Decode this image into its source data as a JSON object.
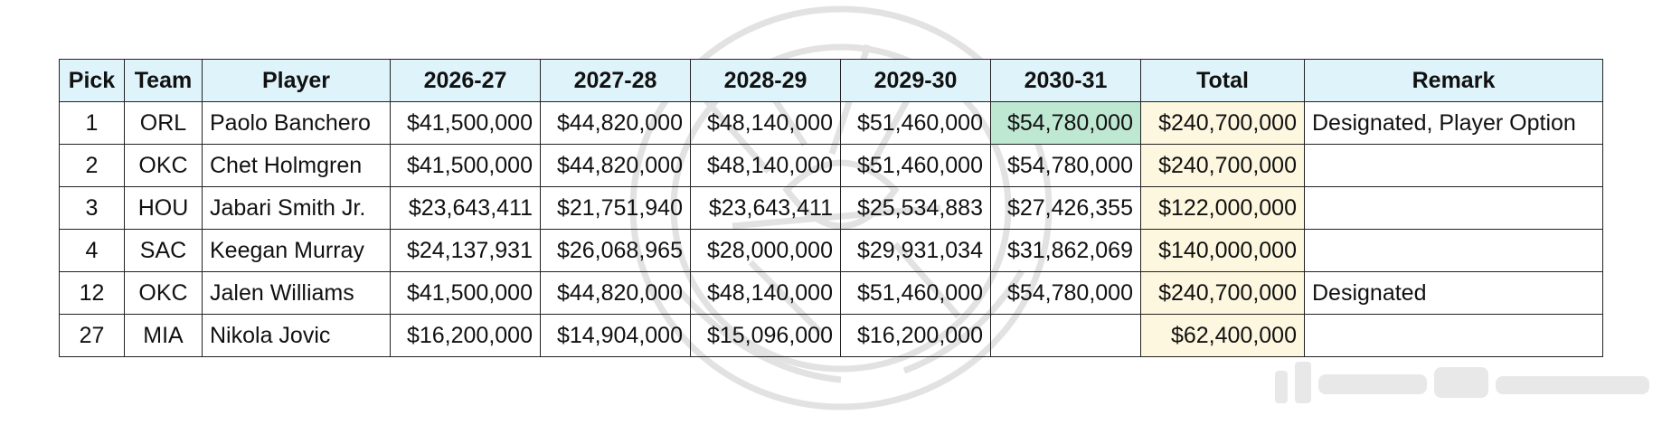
{
  "table": {
    "headers": [
      "Pick",
      "Team",
      "Player",
      "2026-27",
      "2027-28",
      "2028-29",
      "2029-30",
      "2030-31",
      "Total",
      "Remark"
    ],
    "rows": [
      {
        "pick": "1",
        "team": "ORL",
        "player": "Paolo Banchero",
        "y2026_27": "$41,500,000",
        "y2027_28": "$44,820,000",
        "y2028_29": "$48,140,000",
        "y2029_30": "$51,460,000",
        "y2030_31": "$54,780,000",
        "total": "$240,700,000",
        "remark": "Designated, Player Option"
      },
      {
        "pick": "2",
        "team": "OKC",
        "player": "Chet Holmgren",
        "y2026_27": "$41,500,000",
        "y2027_28": "$44,820,000",
        "y2028_29": "$48,140,000",
        "y2029_30": "$51,460,000",
        "y2030_31": "$54,780,000",
        "total": "$240,700,000",
        "remark": ""
      },
      {
        "pick": "3",
        "team": "HOU",
        "player": "Jabari Smith Jr.",
        "y2026_27": "$23,643,411",
        "y2027_28": "$21,751,940",
        "y2028_29": "$23,643,411",
        "y2029_30": "$25,534,883",
        "y2030_31": "$27,426,355",
        "total": "$122,000,000",
        "remark": ""
      },
      {
        "pick": "4",
        "team": "SAC",
        "player": "Keegan Murray",
        "y2026_27": "$24,137,931",
        "y2027_28": "$26,068,965",
        "y2028_29": "$28,000,000",
        "y2029_30": "$29,931,034",
        "y2030_31": "$31,862,069",
        "total": "$140,000,000",
        "remark": ""
      },
      {
        "pick": "12",
        "team": "OKC",
        "player": "Jalen Williams",
        "y2026_27": "$41,500,000",
        "y2027_28": "$44,820,000",
        "y2028_29": "$48,140,000",
        "y2029_30": "$51,460,000",
        "y2030_31": "$54,780,000",
        "total": "$240,700,000",
        "remark": "Designated"
      },
      {
        "pick": "27",
        "team": "MIA",
        "player": "Nikola Jovic",
        "y2026_27": "$16,200,000",
        "y2027_28": "$14,904,000",
        "y2028_29": "$15,096,000",
        "y2029_30": "$16,200,000",
        "y2030_31": "",
        "total": "$62,400,000",
        "remark": ""
      }
    ]
  },
  "colors": {
    "header_bg": "#dff3fb",
    "total_bg": "#fdf7e0",
    "highlight_bg": "#bfe8d3",
    "border": "#222222"
  },
  "icons": {
    "watermark": "stamp-watermark-icon",
    "obscured_tag": "blurred-username-tag"
  }
}
